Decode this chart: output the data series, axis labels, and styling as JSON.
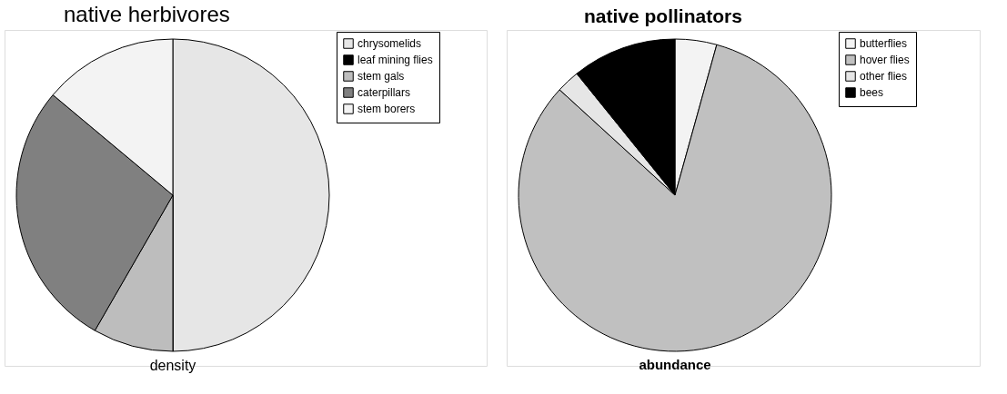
{
  "chart_data": [
    {
      "type": "pie",
      "title": "native herbivores",
      "xlabel": "density",
      "categories": [
        "chrysomelids",
        "leaf mining flies",
        "stem gals",
        "caterpillars",
        "stem borers"
      ],
      "values": [
        50,
        0,
        8.3,
        27.8,
        13.9
      ],
      "colors": [
        "#e6e6e6",
        "#000000",
        "#bdbdbd",
        "#808080",
        "#f3f3f3"
      ],
      "legend": "top right"
    },
    {
      "type": "pie",
      "title": "native pollinators",
      "xlabel": "abundance",
      "categories": [
        "butterflies",
        "hover flies",
        "other flies",
        "bees"
      ],
      "values": [
        4.3,
        82.5,
        2.4,
        10.8
      ],
      "colors": [
        "#f3f3f3",
        "#c0c0c0",
        "#e6e6e6",
        "#000000"
      ],
      "legend": "top right"
    }
  ]
}
